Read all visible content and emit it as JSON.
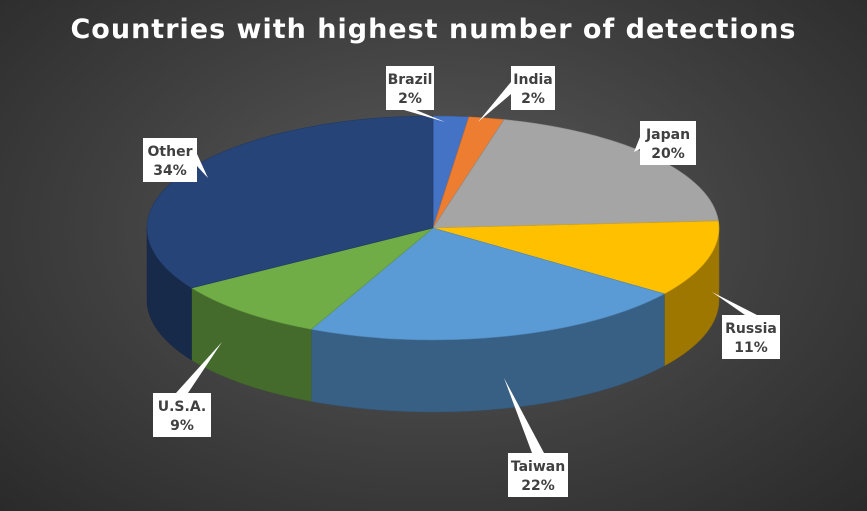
{
  "chart_data": {
    "type": "pie",
    "title": "Countries with highest number of detections",
    "slices": [
      {
        "label": "Brazil",
        "value": 2,
        "value_label": "2%",
        "color": "#4472c4"
      },
      {
        "label": "India",
        "value": 2,
        "value_label": "2%",
        "color": "#ed7d31"
      },
      {
        "label": "Japan",
        "value": 20,
        "value_label": "20%",
        "color": "#a5a5a5"
      },
      {
        "label": "Russia",
        "value": 11,
        "value_label": "11%",
        "color": "#ffc000"
      },
      {
        "label": "Taiwan",
        "value": 22,
        "value_label": "22%",
        "color": "#5b9bd5"
      },
      {
        "label": "U.S.A.",
        "value": 9,
        "value_label": "9%",
        "color": "#70ad47"
      },
      {
        "label": "Other",
        "value": 34,
        "value_label": "34%",
        "color": "#264478"
      }
    ],
    "legend": "none"
  }
}
